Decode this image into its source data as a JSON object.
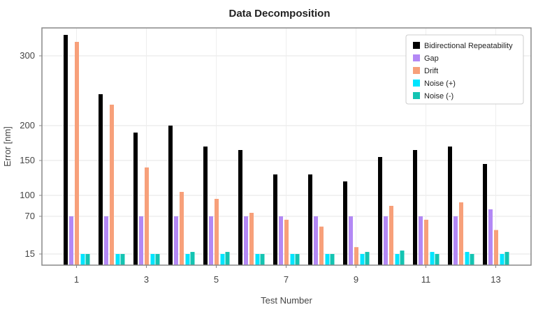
{
  "chart_data": {
    "type": "bar",
    "title": "Data Decomposition",
    "xlabel": "Test Number",
    "ylabel": "Error [nm]",
    "categories": [
      1,
      2,
      3,
      4,
      5,
      6,
      7,
      8,
      9,
      10,
      11,
      12,
      13
    ],
    "x_tick_labels": [
      "1",
      "3",
      "5",
      "7",
      "9",
      "11",
      "13"
    ],
    "y_tick_values": [
      15,
      70,
      100,
      150,
      200,
      300
    ],
    "y_tick_labels": [
      "15",
      "70",
      "100",
      "150",
      "200",
      "300"
    ],
    "ylim": [
      0,
      340
    ],
    "y_scale": "nonlinear (ticks 15, 70, 100, 150, 200, 300)",
    "grid": true,
    "legend_position": "top-right",
    "series": [
      {
        "name": "Bidirectional Repeatability",
        "color": "#000000",
        "values": [
          330,
          245,
          190,
          200,
          170,
          165,
          130,
          130,
          120,
          155,
          165,
          170,
          145
        ]
      },
      {
        "name": "Gap",
        "color": "#b388f5",
        "values": [
          70,
          70,
          70,
          70,
          70,
          70,
          70,
          70,
          70,
          70,
          70,
          70,
          80
        ]
      },
      {
        "name": "Drift",
        "color": "#f7a07a",
        "values": [
          320,
          230,
          140,
          105,
          95,
          75,
          65,
          55,
          25,
          85,
          65,
          90,
          50
        ]
      },
      {
        "name": "Noise (+)",
        "color": "#00e5ff",
        "values": [
          15,
          15,
          15,
          15,
          15,
          15,
          15,
          15,
          15,
          15,
          18,
          18,
          15
        ]
      },
      {
        "name": "Noise (-)",
        "color": "#13c4b2",
        "values": [
          15,
          15,
          15,
          18,
          18,
          15,
          15,
          15,
          18,
          20,
          15,
          15,
          18
        ]
      }
    ]
  }
}
